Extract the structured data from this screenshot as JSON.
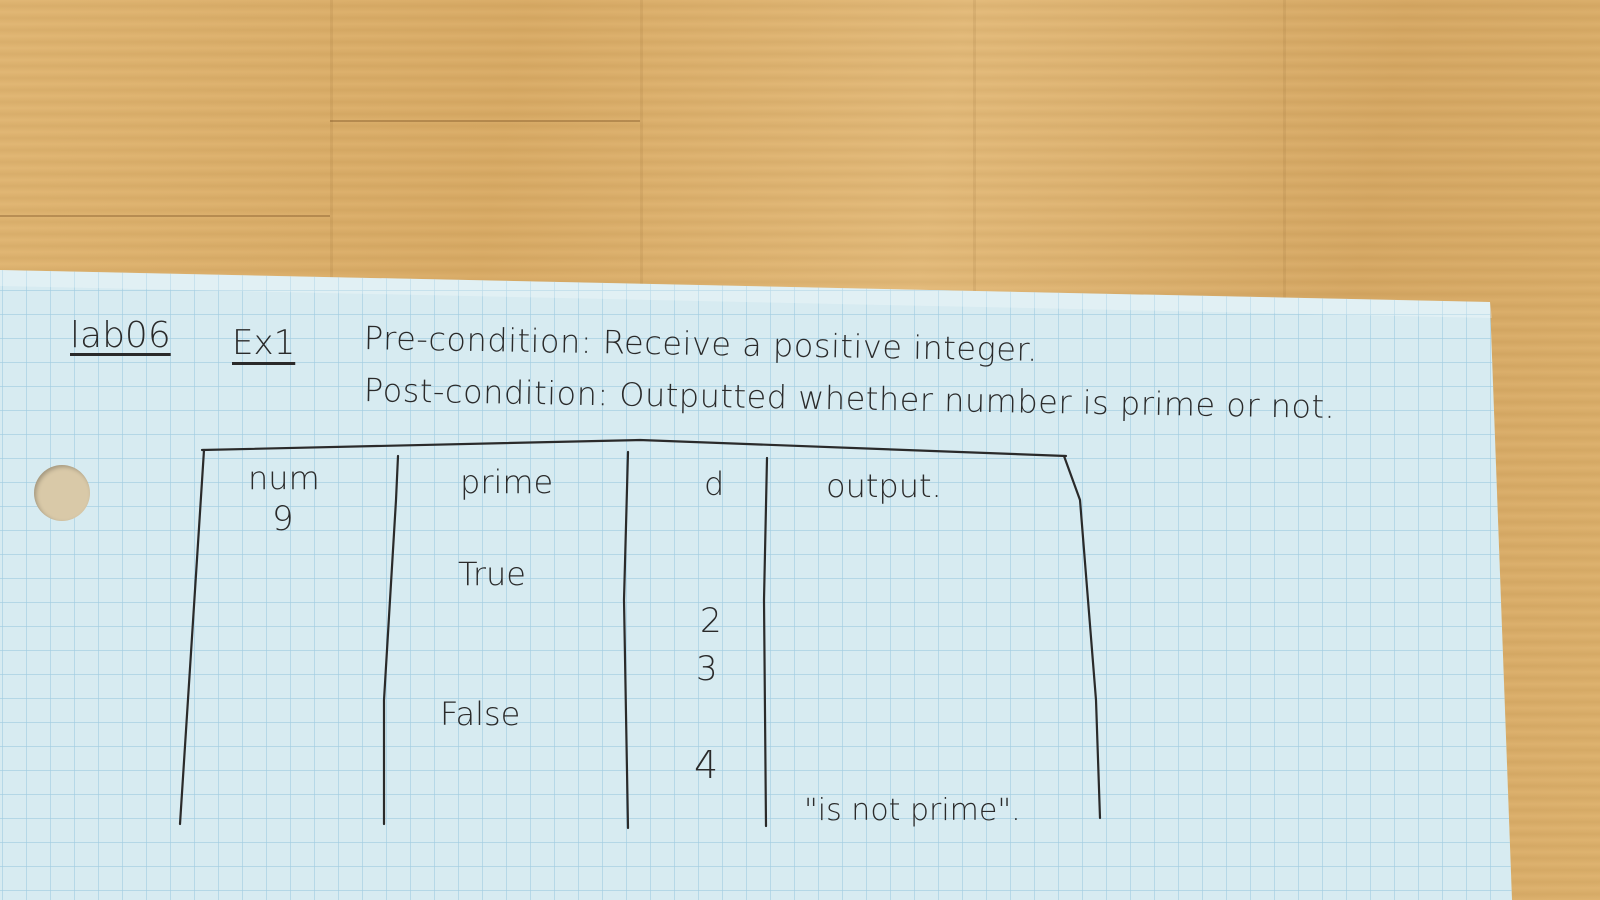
{
  "header": {
    "lab": "lab06",
    "exercise": "Ex1",
    "precondition": "Pre-condition:  Receive  a   positive  integer.",
    "postcondition": "Post-condition:  Outputted  whether  number  is  prime  or  not."
  },
  "table": {
    "headers": [
      "num",
      "prime",
      "d",
      "output."
    ],
    "num_values": [
      "9"
    ],
    "prime_values": [
      "True",
      "False"
    ],
    "d_values": [
      "2",
      "3",
      "4"
    ],
    "output_values": [
      "\"is not prime\"."
    ]
  },
  "colors": {
    "paper": "#d7ebf1",
    "grid": "#9fcbe0",
    "ink": "#2a2a2a",
    "wood": "#dcae68"
  }
}
